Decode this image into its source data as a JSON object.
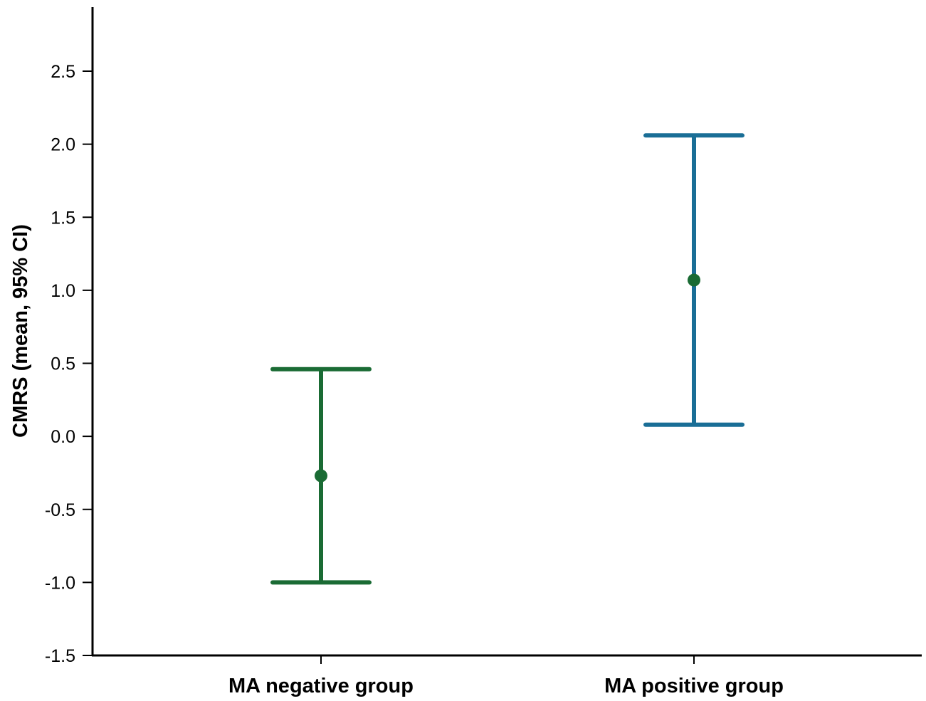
{
  "chart_data": {
    "type": "errorbar",
    "title": "",
    "xlabel": "",
    "ylabel": "CMRS (mean, 95% CI)",
    "ylim": [
      -1.5,
      2.9
    ],
    "yticks": [
      -1.5,
      -1.0,
      -0.5,
      0.0,
      0.5,
      1.0,
      1.5,
      2.0,
      2.5
    ],
    "ytick_labels": [
      "-1.5",
      "-1.0",
      "-0.5",
      "0.0",
      "0.5",
      "1.0",
      "1.5",
      "2.0",
      "2.5"
    ],
    "categories": [
      "MA negative group",
      "MA positive group"
    ],
    "series": [
      {
        "category": "MA negative group",
        "mean": -0.27,
        "ci_lower": -1.0,
        "ci_upper": 0.46,
        "bar_color": "#1a6b34",
        "marker_color": "#1a6b34"
      },
      {
        "category": "MA positive group",
        "mean": 1.07,
        "ci_lower": 0.08,
        "ci_upper": 2.06,
        "bar_color": "#1a6e96",
        "marker_color": "#1a6b34"
      }
    ],
    "grid": false,
    "legend": "none"
  }
}
